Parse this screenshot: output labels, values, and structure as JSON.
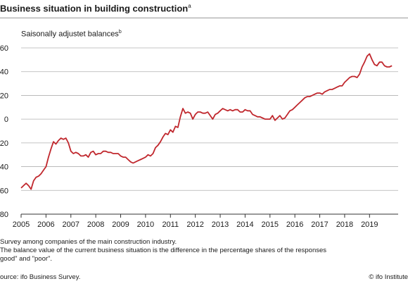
{
  "title": "Business situation in building construction",
  "title_sup": "a",
  "subtitle": "Saisonally adjustet balances",
  "subtitle_sup": "b",
  "notes": [
    "Survey among companies of the main construction industry.",
    "The balance value of the current business situation is the difference in the percentage shares of the responses",
    "good\" and \"poor\"."
  ],
  "source": "ource: ifo Business Survey.",
  "copyright": "© ifo Institute",
  "colors": {
    "line": "#c0272d",
    "grid": "#b0b0b0",
    "axis": "#333333"
  },
  "chart_data": {
    "type": "line",
    "ylim": [
      -80,
      60
    ],
    "yticks": [
      60,
      40,
      20,
      0,
      -20,
      -40,
      -60,
      -80
    ],
    "ytick_labels": [
      "60",
      "40",
      "20",
      "0",
      "20",
      "40",
      "60",
      "80"
    ],
    "xlim": [
      2005,
      2020.15
    ],
    "xticks": [
      2005,
      2006,
      2007,
      2008,
      2009,
      2010,
      2011,
      2012,
      2013,
      2014,
      2015,
      2016,
      2017,
      2018,
      2019
    ],
    "xtick_labels": [
      "2005",
      "2006",
      "2007",
      "2008",
      "2009",
      "2010",
      "2011",
      "2012",
      "2013",
      "2014",
      "2015",
      "2016",
      "2017",
      "2018",
      "2019"
    ],
    "grid": true,
    "series": [
      {
        "x": [
          2005.0,
          2005.1,
          2005.2,
          2005.3,
          2005.4,
          2005.5,
          2005.6,
          2005.7,
          2005.8,
          2005.9,
          2006.0,
          2006.1,
          2006.2,
          2006.3,
          2006.4,
          2006.5,
          2006.6,
          2006.7,
          2006.8,
          2006.9,
          2007.0,
          2007.1,
          2007.2,
          2007.3,
          2007.4,
          2007.5,
          2007.6,
          2007.7,
          2007.8,
          2007.9,
          2008.0,
          2008.1,
          2008.2,
          2008.3,
          2008.4,
          2008.5,
          2008.6,
          2008.7,
          2008.8,
          2008.9,
          2009.0,
          2009.1,
          2009.2,
          2009.3,
          2009.4,
          2009.5,
          2009.6,
          2009.7,
          2009.8,
          2009.9,
          2010.0,
          2010.1,
          2010.2,
          2010.3,
          2010.4,
          2010.5,
          2010.6,
          2010.7,
          2010.8,
          2010.9,
          2011.0,
          2011.1,
          2011.2,
          2011.3,
          2011.4,
          2011.5,
          2011.6,
          2011.7,
          2011.8,
          2011.9,
          2012.0,
          2012.1,
          2012.2,
          2012.3,
          2012.4,
          2012.5,
          2012.6,
          2012.7,
          2012.8,
          2012.9,
          2013.0,
          2013.1,
          2013.2,
          2013.3,
          2013.4,
          2013.5,
          2013.6,
          2013.7,
          2013.8,
          2013.9,
          2014.0,
          2014.1,
          2014.2,
          2014.3,
          2014.4,
          2014.5,
          2014.6,
          2014.7,
          2014.8,
          2014.9,
          2015.0,
          2015.1,
          2015.2,
          2015.3,
          2015.4,
          2015.5,
          2015.6,
          2015.7,
          2015.8,
          2015.9,
          2016.0,
          2016.1,
          2016.2,
          2016.3,
          2016.4,
          2016.5,
          2016.6,
          2016.7,
          2016.8,
          2016.9,
          2017.0,
          2017.1,
          2017.2,
          2017.3,
          2017.4,
          2017.5,
          2017.6,
          2017.7,
          2017.8,
          2017.9,
          2018.0,
          2018.1,
          2018.2,
          2018.3,
          2018.4,
          2018.5,
          2018.6,
          2018.7,
          2018.8,
          2018.9,
          2019.0,
          2019.1,
          2019.2,
          2019.3,
          2019.4,
          2019.5,
          2019.6,
          2019.7,
          2019.8,
          2019.9
        ],
        "values": [
          -58,
          -56,
          -54,
          -56,
          -59,
          -52,
          -49,
          -48,
          -46,
          -43,
          -40,
          -32,
          -25,
          -19,
          -21,
          -18,
          -16,
          -17,
          -16,
          -20,
          -27,
          -29,
          -28,
          -29,
          -31,
          -31,
          -30,
          -32,
          -28,
          -27,
          -30,
          -29,
          -29,
          -27,
          -27,
          -28,
          -28,
          -29,
          -29,
          -29,
          -31,
          -32,
          -32,
          -34,
          -36,
          -37,
          -36,
          -35,
          -34,
          -33,
          -32,
          -30,
          -31,
          -29,
          -24,
          -22,
          -19,
          -15,
          -12,
          -13,
          -9,
          -11,
          -6,
          -7,
          2,
          9,
          5,
          6,
          5,
          0,
          4,
          6,
          6,
          5,
          5,
          6,
          3,
          0,
          4,
          5,
          7,
          9,
          8,
          7,
          8,
          7,
          8,
          8,
          6,
          6,
          8,
          7,
          7,
          4,
          3,
          2,
          2,
          1,
          0,
          0,
          0,
          3,
          -1,
          1,
          3,
          0,
          1,
          4,
          7,
          8,
          10,
          12,
          14,
          16,
          18,
          19,
          19,
          20,
          21,
          22,
          22,
          21,
          23,
          24,
          25,
          25,
          26,
          27,
          28,
          28,
          31,
          33,
          35,
          36,
          36,
          35,
          38,
          44,
          48,
          53,
          55,
          50,
          46,
          45,
          48,
          48,
          45,
          44,
          44,
          45
        ]
      }
    ]
  }
}
